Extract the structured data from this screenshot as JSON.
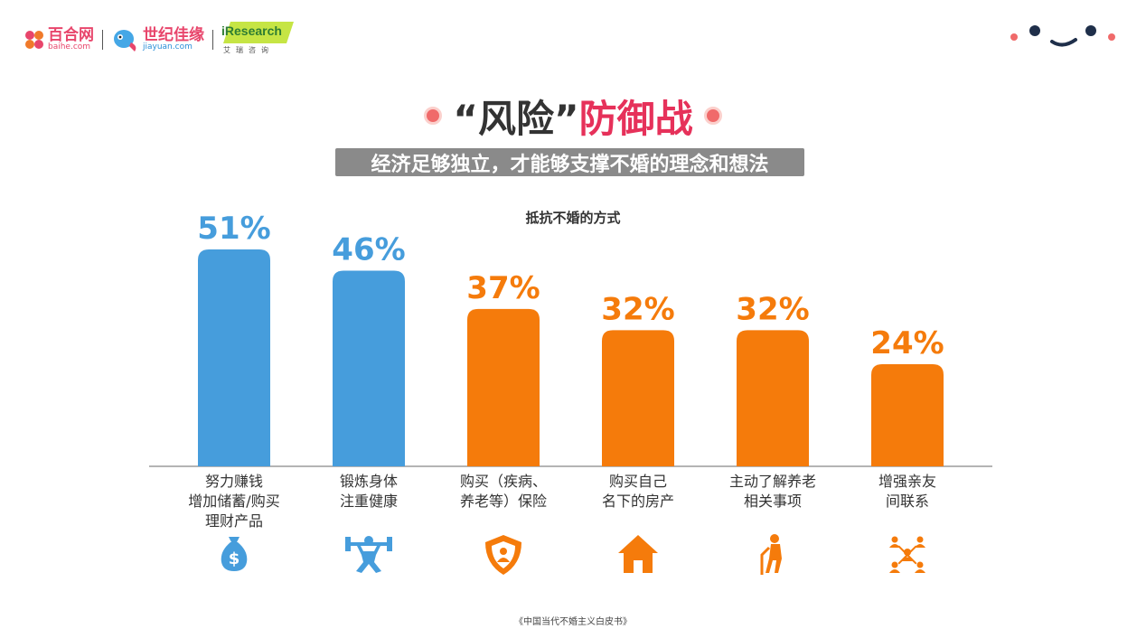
{
  "brand": {
    "baihe_name": "百合网",
    "baihe_url": "baihe.com",
    "jiayuan_name": "世纪佳缘",
    "jiayuan_url": "jiayuan.com",
    "iresearch_name": "iResearch",
    "iresearch_sub": "艾瑞咨询"
  },
  "title": {
    "quoted": "“风险”",
    "red": "防御战"
  },
  "subtitle": "经济足够独立，才能够支撑不婚的理念和想法",
  "footer": "《中国当代不婚主义白皮书》",
  "colors": {
    "blue": "#469ddc",
    "orange": "#f57b0b",
    "accent_red": "#e6315a"
  },
  "chart_data": {
    "type": "bar",
    "title": "抵抗不婚的方式",
    "categories": [
      [
        "努力赚钱",
        "增加储蓄/购买",
        "理财产品"
      ],
      [
        "锻炼身体",
        "注重健康"
      ],
      [
        "购买（疾病、",
        "养老等）保险"
      ],
      [
        "购买自己",
        "名下的房产"
      ],
      [
        "主动了解养老",
        "相关事项"
      ],
      [
        "增强亲友",
        "间联系"
      ]
    ],
    "values": [
      51,
      46,
      37,
      32,
      32,
      24
    ],
    "value_labels": [
      "51%",
      "46%",
      "37%",
      "32%",
      "32%",
      "24%"
    ],
    "bar_colors": [
      "#469ddc",
      "#469ddc",
      "#f57b0b",
      "#f57b0b",
      "#f57b0b",
      "#f57b0b"
    ],
    "icons": [
      "money-bag-icon",
      "weightlifter-icon",
      "shield-person-icon",
      "house-icon",
      "elder-cane-icon",
      "network-people-icon"
    ],
    "ylim": [
      0,
      52
    ],
    "grid": false
  }
}
